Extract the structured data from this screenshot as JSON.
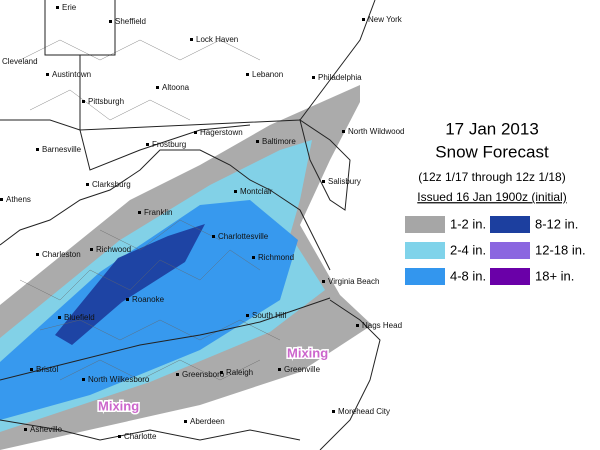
{
  "header": {
    "date": "17 Jan 2013",
    "title": "Snow Forecast",
    "period": "(12z 1/17 through 12z 1/18)",
    "issued": "Issued 16 Jan 1900z (initial)"
  },
  "legend": [
    {
      "label": "1-2 in.",
      "color": "#a6a6a6"
    },
    {
      "label": "2-4 in.",
      "color": "#7fd3ea"
    },
    {
      "label": "4-8 in.",
      "color": "#3396ee"
    },
    {
      "label": "8-12 in.",
      "color": "#1c3f9f"
    },
    {
      "label": "12-18 in.",
      "color": "#8a66e0"
    },
    {
      "label": "18+ in.",
      "color": "#6a00a8"
    }
  ],
  "cities": [
    "Erie",
    "Sheffield",
    "New York",
    "Cleveland",
    "Austintown",
    "Lock Haven",
    "Lebanon",
    "Philadelphia",
    "Altoona",
    "Pittsburgh",
    "Barnesville",
    "Hagerstown",
    "Frostburg",
    "Baltimore",
    "North Wildwood",
    "Clarksburg",
    "Montclair",
    "Salisbury",
    "Athens",
    "Franklin",
    "Charlottesville",
    "Charleston",
    "Richwood",
    "Richmond",
    "Virginia Beach",
    "Roanoke",
    "Bluefield",
    "South Hill",
    "Nags Head",
    "Bristol",
    "North Wilkesboro",
    "Greensboro",
    "Raleigh",
    "Greenville",
    "Asheville",
    "Charlotte",
    "Aberdeen",
    "Morehead City"
  ],
  "annotations": [
    "Mixing",
    "Mixing"
  ]
}
